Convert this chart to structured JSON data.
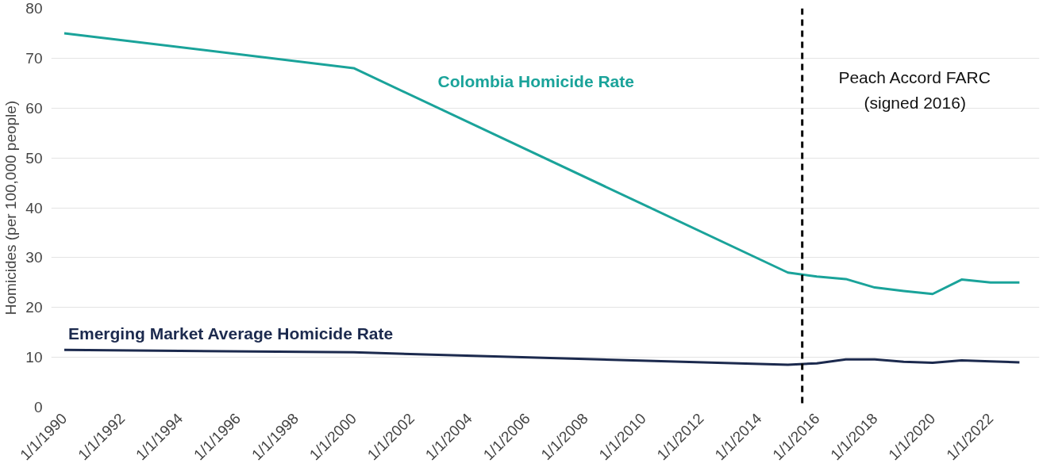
{
  "chart_data": {
    "type": "line",
    "ylabel": "Homicides (per 100,000 people)",
    "xlim": [
      "1989-07-20",
      "2023-09-10"
    ],
    "xticks": [
      {
        "value": "1990-01-01",
        "label": "1/1/1990"
      },
      {
        "value": "1992-01-01",
        "label": "1/1/1992"
      },
      {
        "value": "1994-01-01",
        "label": "1/1/1994"
      },
      {
        "value": "1996-01-01",
        "label": "1/1/1996"
      },
      {
        "value": "1998-01-01",
        "label": "1/1/1998"
      },
      {
        "value": "2000-01-01",
        "label": "1/1/2000"
      },
      {
        "value": "2002-01-01",
        "label": "1/1/2002"
      },
      {
        "value": "2004-01-01",
        "label": "1/1/2004"
      },
      {
        "value": "2006-01-01",
        "label": "1/1/2006"
      },
      {
        "value": "2008-01-01",
        "label": "1/1/2008"
      },
      {
        "value": "2010-01-01",
        "label": "1/1/2010"
      },
      {
        "value": "2012-01-01",
        "label": "1/1/2012"
      },
      {
        "value": "2014-01-01",
        "label": "1/1/2014"
      },
      {
        "value": "2016-01-01",
        "label": "1/1/2016"
      },
      {
        "value": "2018-01-01",
        "label": "1/1/2018"
      },
      {
        "value": "2020-01-01",
        "label": "1/1/2020"
      },
      {
        "value": "2022-01-01",
        "label": "1/1/2022"
      }
    ],
    "ylim": [
      0,
      80
    ],
    "yticks": [
      0,
      10,
      20,
      30,
      40,
      50,
      60,
      70,
      80
    ],
    "grid": "y",
    "line_style": "solid",
    "series": [
      {
        "name": "Colombia Homicide Rate",
        "color": "#1aa39a",
        "x": [
          "1990-01-01",
          "2000-01-01",
          "2015-01-01",
          "2016-01-01",
          "2017-01-01",
          "2018-01-01",
          "2019-01-01",
          "2020-01-01",
          "2021-01-01",
          "2022-01-01",
          "2023-01-01"
        ],
        "values": [
          75,
          68,
          27,
          26.2,
          25.7,
          24,
          23.3,
          22.7,
          25.6,
          25,
          25
        ]
      },
      {
        "name": "Emerging Market Average Homicide Rate",
        "color": "#1c2a4e",
        "x": [
          "1990-01-01",
          "2000-01-01",
          "2015-01-01",
          "2016-01-01",
          "2017-01-01",
          "2018-01-01",
          "2019-01-01",
          "2020-01-01",
          "2021-01-01",
          "2022-01-01",
          "2023-01-01"
        ],
        "values": [
          11.5,
          11,
          8.5,
          8.8,
          9.6,
          9.6,
          9.1,
          8.9,
          9.4,
          9.2,
          9
        ]
      }
    ],
    "ref_lines": [
      {
        "axis": "x",
        "value": "2015-07-01",
        "label": "Peach Accord FARC\n(signed 2016)",
        "color": "#000000",
        "line_style": "dashed"
      }
    ]
  }
}
